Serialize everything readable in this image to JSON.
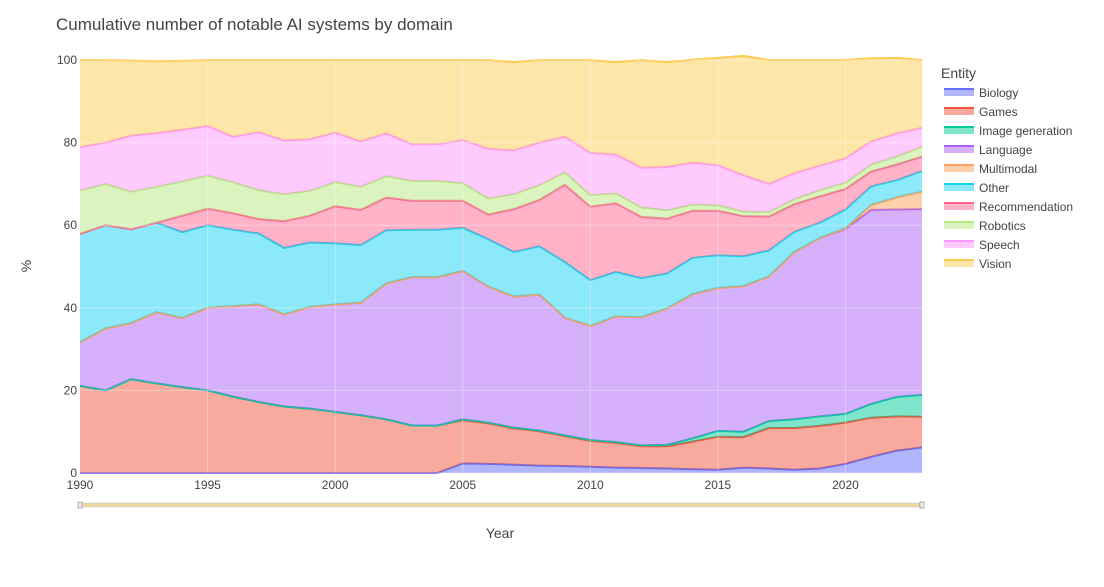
{
  "chart_data": {
    "type": "area",
    "title": "Cumulative number of notable AI systems by domain",
    "xlabel": "Year",
    "ylabel": "%",
    "xlim": [
      1990,
      2023
    ],
    "ylim": [
      0,
      100
    ],
    "x_ticks": [
      1990,
      1995,
      2000,
      2005,
      2010,
      2015,
      2020
    ],
    "y_ticks": [
      0,
      20,
      40,
      60,
      80,
      100
    ],
    "stacked": true,
    "normalized_percent": true,
    "grid": true,
    "legend_title": "Entity",
    "legend_position": "right",
    "range_slider": true,
    "x": [
      1990,
      1991,
      1992,
      1993,
      1994,
      1995,
      1996,
      1997,
      1998,
      1999,
      2000,
      2001,
      2002,
      2003,
      2004,
      2005,
      2006,
      2007,
      2008,
      2009,
      2010,
      2011,
      2012,
      2013,
      2014,
      2015,
      2016,
      2017,
      2018,
      2019,
      2020,
      2021,
      2022,
      2023
    ],
    "series": [
      {
        "name": "Biology",
        "color": "#636efa",
        "values": [
          0,
          0,
          0,
          0,
          0,
          0,
          0,
          0,
          0,
          0,
          0,
          0,
          0,
          0,
          0,
          2.3,
          2.2,
          2,
          1.8,
          1.7,
          1.5,
          1.3,
          1.2,
          1.1,
          0.9,
          0.8,
          1.3,
          1.1,
          0.8,
          1.1,
          2.2,
          3.9,
          5.4,
          6.2
        ]
      },
      {
        "name": "Games",
        "color": "#ef553b",
        "values": [
          21.1,
          20,
          22.7,
          21.7,
          20.8,
          20,
          18.5,
          17.2,
          16.1,
          15.6,
          14.8,
          14,
          13,
          11.5,
          11.5,
          10.5,
          9.8,
          8.8,
          8.3,
          7.2,
          6.3,
          6,
          5.3,
          5.4,
          6.7,
          8,
          7.4,
          9.8,
          10.1,
          10.3,
          10,
          9.5,
          8.3,
          7.4
        ]
      },
      {
        "name": "Image generation",
        "color": "#00cc96",
        "values": [
          0,
          0,
          0,
          0,
          0,
          0,
          0,
          0,
          0,
          0,
          0,
          0,
          0,
          0,
          0,
          0.2,
          0.2,
          0.2,
          0.2,
          0.2,
          0.2,
          0.2,
          0.2,
          0.3,
          0.8,
          1.4,
          1.3,
          1.7,
          2.1,
          2.3,
          2.1,
          3.3,
          4.7,
          5.3
        ]
      },
      {
        "name": "Language",
        "color": "#ab63fa",
        "values": [
          10.5,
          15,
          13.6,
          17.2,
          16.7,
          20,
          21.9,
          23.6,
          22.3,
          24.6,
          26,
          27.2,
          32.9,
          35.9,
          35.9,
          35.9,
          32.9,
          31.7,
          32.9,
          28.5,
          27.6,
          30.4,
          31,
          33,
          34.9,
          34.6,
          35.2,
          35,
          40.5,
          43.2,
          44.8,
          47,
          45.4,
          45
        ]
      },
      {
        "name": "Multimodal",
        "color": "#ffa15a",
        "values": [
          0,
          0,
          0,
          0,
          0,
          0,
          0,
          0,
          0,
          0,
          0,
          0,
          0,
          0,
          0,
          0,
          0,
          0,
          0,
          0,
          0,
          0,
          0,
          0,
          0,
          0,
          0,
          0,
          0,
          0,
          0.2,
          1.2,
          2.9,
          4.2
        ]
      },
      {
        "name": "Other",
        "color": "#19d3f3",
        "values": [
          26.3,
          25,
          22.7,
          21.7,
          20.8,
          20,
          18.5,
          17.2,
          16.1,
          15.6,
          14.8,
          14,
          12.9,
          11.5,
          11.5,
          10.5,
          11.5,
          10.8,
          11.7,
          13.5,
          11.1,
          10.8,
          9.5,
          8.5,
          8.8,
          7.9,
          7.3,
          6.3,
          4.9,
          3.7,
          4.5,
          4.5,
          4.2,
          5
        ]
      },
      {
        "name": "Recommendation",
        "color": "#ff6692",
        "values": [
          0,
          0,
          0,
          0,
          4,
          4,
          4,
          3.5,
          6.5,
          6.5,
          9,
          8.5,
          7.9,
          7,
          7,
          6.5,
          6,
          10.4,
          11.2,
          18.7,
          17.8,
          16.6,
          14.8,
          13.3,
          11.4,
          10.8,
          9.7,
          8.2,
          6.7,
          6.4,
          5,
          3.6,
          3.8,
          3.5
        ]
      },
      {
        "name": "Robotics",
        "color": "#b6e880",
        "values": [
          10.5,
          10,
          9.1,
          8.7,
          8.3,
          8,
          7.5,
          7,
          6.5,
          6,
          5.8,
          5.6,
          5.2,
          4.8,
          4.8,
          4.3,
          3.9,
          3.6,
          3.6,
          3,
          2.8,
          2.4,
          2.3,
          2,
          1.5,
          1.3,
          1.1,
          1.1,
          1.2,
          1.5,
          1.5,
          1.7,
          1.9,
          2.4
        ]
      },
      {
        "name": "Speech",
        "color": "#ff97ff",
        "values": [
          10.5,
          10,
          13.6,
          13,
          12.5,
          12,
          11,
          14,
          13,
          12.5,
          12,
          11,
          10.3,
          8.9,
          8.9,
          10.4,
          12,
          10.6,
          10.3,
          8.6,
          10.2,
          9.4,
          9.6,
          10.5,
          10.1,
          9.7,
          8.8,
          6.8,
          6.3,
          5.9,
          5.9,
          5.6,
          5.6,
          4.6
        ]
      },
      {
        "name": "Vision",
        "color": "#fecb52",
        "values": [
          21.1,
          20,
          18.2,
          17.4,
          16.7,
          16,
          18.6,
          17.5,
          19.5,
          19.2,
          17.6,
          19.7,
          17.8,
          20.4,
          20.4,
          19.4,
          21.5,
          21.4,
          20,
          18.6,
          22.5,
          22.4,
          26.1,
          25.4,
          25,
          26,
          28.9,
          30,
          27.4,
          25.6,
          23.8,
          20.1,
          18.3,
          16.4
        ]
      }
    ]
  }
}
